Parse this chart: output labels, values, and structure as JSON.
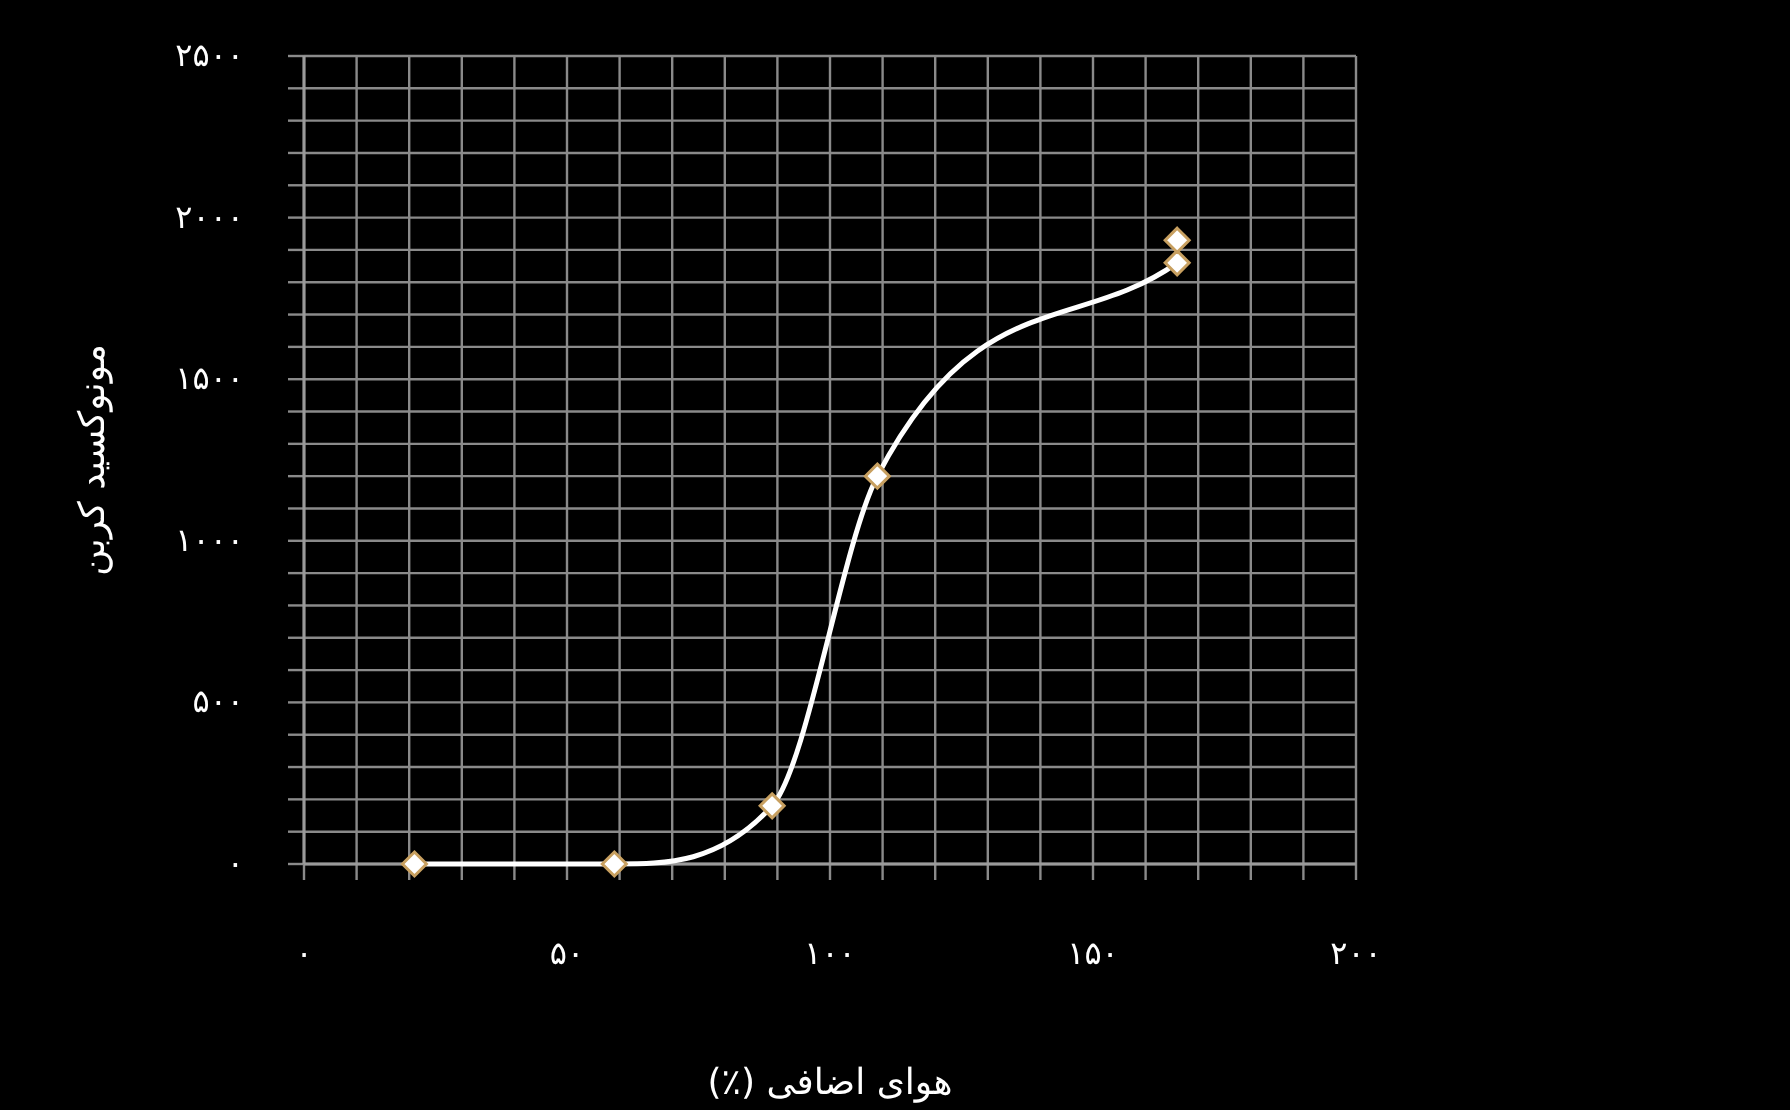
{
  "chart_data": {
    "type": "line",
    "xlabel": "هوای اضافی (٪)",
    "ylabel": "مونوکسید کربن",
    "series": [
      {
        "type": "line",
        "color": "#ffffff",
        "x": [
          21,
          59,
          89,
          109,
          166
        ],
        "values": [
          0,
          0,
          180,
          1200,
          1860
        ]
      },
      {
        "type": "scatter",
        "color": "#ffffff",
        "x": [
          166
        ],
        "values": [
          1930
        ]
      }
    ],
    "xlim": [
      0,
      200
    ],
    "ylim": [
      0,
      2500
    ],
    "xticks": [
      {
        "value": 0,
        "label": "۰"
      },
      {
        "value": 10,
        "label": null
      },
      {
        "value": 20,
        "label": null
      },
      {
        "value": 30,
        "label": null
      },
      {
        "value": 40,
        "label": null
      },
      {
        "value": 50,
        "label": "۵۰"
      },
      {
        "value": 60,
        "label": null
      },
      {
        "value": 70,
        "label": null
      },
      {
        "value": 80,
        "label": null
      },
      {
        "value": 90,
        "label": null
      },
      {
        "value": 100,
        "label": "۱۰۰"
      },
      {
        "value": 110,
        "label": null
      },
      {
        "value": 120,
        "label": null
      },
      {
        "value": 130,
        "label": null
      },
      {
        "value": 140,
        "label": null
      },
      {
        "value": 150,
        "label": "۱۵۰"
      },
      {
        "value": 160,
        "label": null
      },
      {
        "value": 170,
        "label": null
      },
      {
        "value": 180,
        "label": null
      },
      {
        "value": 190,
        "label": null
      },
      {
        "value": 200,
        "label": "۲۰۰"
      }
    ],
    "yticks": [
      {
        "value": 0,
        "label": "۰"
      },
      {
        "value": 100,
        "label": null
      },
      {
        "value": 200,
        "label": null
      },
      {
        "value": 300,
        "label": null
      },
      {
        "value": 400,
        "label": null
      },
      {
        "value": 500,
        "label": "۵۰۰"
      },
      {
        "value": 600,
        "label": null
      },
      {
        "value": 700,
        "label": null
      },
      {
        "value": 800,
        "label": null
      },
      {
        "value": 900,
        "label": null
      },
      {
        "value": 1000,
        "label": "۱۰۰۰"
      },
      {
        "value": 1100,
        "label": null
      },
      {
        "value": 1200,
        "label": null
      },
      {
        "value": 1300,
        "label": null
      },
      {
        "value": 1400,
        "label": null
      },
      {
        "value": 1500,
        "label": "۱۵۰۰"
      },
      {
        "value": 1600,
        "label": null
      },
      {
        "value": 1700,
        "label": null
      },
      {
        "value": 1800,
        "label": null
      },
      {
        "value": 1900,
        "label": null
      },
      {
        "value": 2000,
        "label": "۲۰۰۰"
      },
      {
        "value": 2100,
        "label": null
      },
      {
        "value": 2200,
        "label": null
      },
      {
        "value": 2300,
        "label": null
      },
      {
        "value": 2400,
        "label": null
      },
      {
        "value": 2500,
        "label": "۲۵۰۰"
      }
    ],
    "grid": true,
    "marker": "diamond",
    "line_style": "solid"
  }
}
